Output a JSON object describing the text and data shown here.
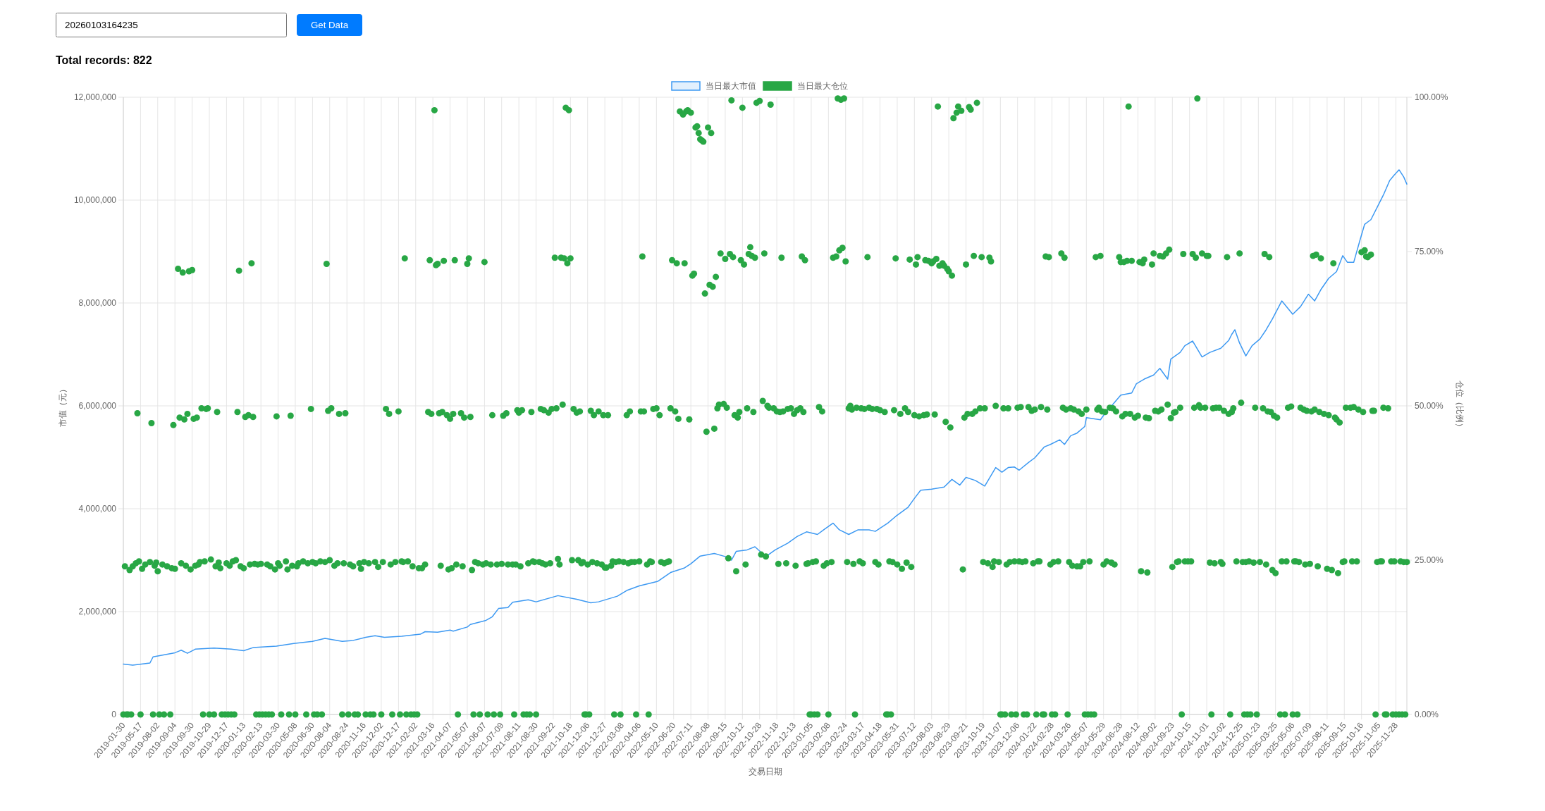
{
  "chart_data": {
    "type": "line",
    "title": "Total records: 822",
    "annotations": [
      "20260103164235",
      "Get Data"
    ],
    "xlabel": "交易日期",
    "ylabel": "市值（元）",
    "y2label": "仓位（比例）",
    "legend": "top",
    "grid": true,
    "categories": [
      "2019-01-30",
      null,
      null,
      null,
      null,
      null,
      null,
      null,
      null,
      null,
      null,
      "2019-05-17",
      null,
      null,
      null,
      null,
      null,
      null,
      null,
      null,
      null,
      null,
      "2019-08-02",
      null,
      null,
      null,
      null,
      null,
      null,
      null,
      null,
      null,
      null,
      "2019-09-04",
      null,
      null,
      null,
      null,
      null,
      null,
      null,
      null,
      null,
      null,
      "2019-09-30",
      null,
      null,
      null,
      null,
      null,
      null,
      null,
      null,
      null,
      null,
      "2019-10-29",
      null,
      null,
      null,
      null,
      null,
      null,
      null,
      null,
      null,
      null,
      "2019-12-17",
      null,
      null,
      null,
      null,
      null,
      null,
      null,
      null,
      null,
      null,
      "2020-01-13",
      null,
      null,
      null,
      null,
      null,
      null,
      null,
      null,
      null,
      null,
      "2020-02-13",
      null,
      null,
      null,
      null,
      null,
      null,
      null,
      null,
      null,
      null,
      "2020-03-30",
      null,
      null,
      null,
      null,
      null,
      null,
      null,
      null,
      null,
      null,
      "2020-05-08",
      null,
      null,
      null,
      null,
      null,
      null,
      null,
      null,
      null,
      null,
      "2020-06-30",
      null,
      null,
      null,
      null,
      null,
      null,
      null,
      null,
      null,
      null,
      "2020-08-04",
      null,
      null,
      null,
      null,
      null,
      null,
      null,
      null,
      null,
      null,
      "2020-08-24",
      null,
      null,
      null,
      null,
      null,
      null,
      null,
      null,
      null,
      null,
      "2020-11-16",
      null,
      null,
      null,
      null,
      null,
      null,
      null,
      null,
      null,
      null,
      "2020-12-02",
      null,
      null,
      null,
      null,
      null,
      null,
      null,
      null,
      null,
      null,
      "2020-12-17",
      null,
      null,
      null,
      null,
      null,
      null,
      null,
      null,
      null,
      null,
      "2021-02-02",
      null,
      null,
      null,
      null,
      null,
      null,
      null,
      null,
      null,
      null,
      "2021-03-16",
      null,
      null,
      null,
      null,
      null,
      null,
      null,
      null,
      null,
      null,
      "2021-04-07",
      null,
      null,
      null,
      null,
      null,
      null,
      null,
      null,
      null,
      null,
      "2021-05-07",
      null,
      null,
      null,
      null,
      null,
      null,
      null,
      null,
      null,
      null,
      "2021-06-07",
      null,
      null,
      null,
      null,
      null,
      null,
      null,
      null,
      null,
      null,
      "2021-07-09",
      null,
      null,
      null,
      null,
      null,
      null,
      null,
      null,
      null,
      null,
      "2021-08-11",
      null,
      null,
      null,
      null,
      null,
      null,
      null,
      null,
      null,
      null,
      "2021-08-30",
      null,
      null,
      null,
      null,
      null,
      null,
      null,
      null,
      null,
      null,
      "2021-09-22",
      null,
      null,
      null,
      null,
      null,
      null,
      null,
      null,
      null,
      null,
      "2021-10-18",
      null,
      null,
      null,
      null,
      null,
      null,
      null,
      null,
      null,
      null,
      "2021-12-06",
      null,
      null,
      null,
      null,
      null,
      null,
      null,
      null,
      null,
      null,
      "2021-12-27",
      null,
      null,
      null,
      null,
      null,
      null,
      null,
      null,
      null,
      null,
      "2022-03-08",
      null,
      null,
      null,
      null,
      null,
      null,
      null,
      null,
      null,
      null,
      "2022-04-06",
      null,
      null,
      null,
      null,
      null,
      null,
      null,
      null,
      null,
      null,
      "2022-05-10",
      null,
      null,
      null,
      null,
      null,
      null,
      null,
      null,
      null,
      null,
      "2022-06-20",
      null,
      null,
      null,
      null,
      null,
      null,
      null,
      null,
      null,
      null,
      "2022-07-11",
      null,
      null,
      null,
      null,
      null,
      null,
      null,
      null,
      null,
      null,
      "2022-08-08",
      null,
      null,
      null,
      null,
      null,
      null,
      null,
      null,
      null,
      null,
      "2022-09-15",
      null,
      null,
      null,
      null,
      null,
      null,
      null,
      null,
      null,
      null,
      "2022-10-12",
      null,
      null,
      null,
      null,
      null,
      null,
      null,
      null,
      null,
      null,
      "2022-10-28",
      null,
      null,
      null,
      null,
      null,
      null,
      null,
      null,
      null,
      null,
      "2022-11-18",
      null,
      null,
      null,
      null,
      null,
      null,
      null,
      null,
      null,
      null,
      "2022-12-13",
      null,
      null,
      null,
      null,
      null,
      null,
      null,
      null,
      null,
      null,
      "2023-01-05",
      null,
      null,
      null,
      null,
      null,
      null,
      null,
      null,
      null,
      null,
      "2023-02-08",
      null,
      null,
      null,
      null,
      null,
      null,
      null,
      null,
      null,
      null,
      "2023-02-24",
      null,
      null,
      null,
      null,
      null,
      null,
      null,
      null,
      null,
      null,
      "2023-03-17",
      null,
      null,
      null,
      null,
      null,
      null,
      null,
      null,
      null,
      null,
      "2023-04-18",
      null,
      null,
      null,
      null,
      null,
      null,
      null,
      null,
      null,
      null,
      "2023-05-31",
      null,
      null,
      null,
      null,
      null,
      null,
      null,
      null,
      null,
      null,
      "2023-07-12",
      null,
      null,
      null,
      null,
      null,
      null,
      null,
      null,
      null,
      null,
      "2023-08-03",
      null,
      null,
      null,
      null,
      null,
      null,
      null,
      null,
      null,
      null,
      "2023-08-29",
      null,
      null,
      null,
      null,
      null,
      null,
      null,
      null,
      null,
      null,
      "2023-09-21",
      null,
      null,
      null,
      null,
      null,
      null,
      null,
      null,
      null,
      null,
      "2023-10-19",
      null,
      null,
      null,
      null,
      null,
      null,
      null,
      null,
      null,
      null,
      "2023-11-07",
      null,
      null,
      null,
      null,
      null,
      null,
      null,
      null,
      null,
      null,
      "2023-12-06",
      null,
      null,
      null,
      null,
      null,
      null,
      null,
      null,
      null,
      null,
      "2024-01-22",
      null,
      null,
      null,
      null,
      null,
      null,
      null,
      null,
      null,
      null,
      "2024-02-28",
      null,
      null,
      null,
      null,
      null,
      null,
      null,
      null,
      null,
      null,
      "2024-03-26",
      null,
      null,
      null,
      null,
      null,
      null,
      null,
      null,
      null,
      null,
      "2024-05-07",
      null,
      null,
      null,
      null,
      null,
      null,
      null,
      null,
      null,
      null,
      "2024-05-29",
      null,
      null,
      null,
      null,
      null,
      null,
      null,
      null,
      null,
      null,
      "2024-06-28",
      null,
      null,
      null,
      null,
      null,
      null,
      null,
      null,
      null,
      null,
      "2024-08-12",
      null,
      null,
      null,
      null,
      null,
      null,
      null,
      null,
      null,
      null,
      "2024-09-02",
      null,
      null,
      null,
      null,
      null,
      null,
      null,
      null,
      null,
      null,
      "2024-09-23",
      null,
      null,
      null,
      null,
      null,
      null,
      null,
      null,
      null,
      null,
      "2024-10-15",
      null,
      null,
      null,
      null,
      null,
      null,
      null,
      null,
      null,
      null,
      "2024-11-01",
      null,
      null,
      null,
      null,
      null,
      null,
      null,
      null,
      null,
      null,
      "2024-12-02",
      null,
      null,
      null,
      null,
      null,
      null,
      null,
      null,
      null,
      null,
      "2024-12-25",
      null,
      null,
      null,
      null,
      null,
      null,
      null,
      null,
      null,
      null,
      "2025-01-23",
      null,
      null,
      null,
      null,
      null,
      null,
      null,
      null,
      null,
      null,
      "2025-03-25",
      null,
      null,
      null,
      null,
      null,
      null,
      null,
      null,
      null,
      null,
      "2025-05-06",
      null,
      null,
      null,
      null,
      null,
      null,
      null,
      null,
      null,
      null,
      "2025-07-09",
      null,
      null,
      null,
      null,
      null,
      null,
      null,
      null,
      null,
      null,
      "2025-08-11",
      null,
      null,
      null,
      null,
      null,
      null,
      null,
      null,
      null,
      null,
      "2025-09-15",
      null,
      null,
      null,
      null,
      null,
      null,
      null,
      null,
      null,
      null,
      "2025-10-16",
      null,
      null,
      null,
      null,
      null,
      null,
      null,
      null,
      null,
      null,
      "2025-11-05",
      null,
      null,
      null,
      null,
      null,
      null,
      null,
      null,
      null,
      null,
      "2025-11-28",
      null,
      null,
      null,
      null,
      null,
      null,
      null
    ],
    "ylim": [
      0,
      12000000
    ],
    "yticks": [
      0,
      {
        "value": 2000000,
        "label": "2,000,000"
      },
      {
        "value": 4000000,
        "label": "4,000,000"
      },
      {
        "value": 6000000,
        "label": "6,000,000"
      },
      {
        "value": 8000000,
        "label": "8,000,000"
      },
      {
        "value": 10000000,
        "label": "10,000,000"
      },
      {
        "value": 12000000,
        "label": "12,000,000"
      }
    ],
    "y2lim": [
      0,
      100
    ],
    "y2ticks": [
      {
        "value": 0,
        "label": "0.00%"
      },
      {
        "value": 25,
        "label": "25.00%"
      },
      {
        "value": 50,
        "label": "50.00%"
      },
      {
        "value": 75,
        "label": "75.00%"
      },
      {
        "value": 100,
        "label": "100.00%"
      }
    ],
    "series": [
      {
        "name": "当日最大市值",
        "color": "#3d99f2",
        "marker": "none",
        "line_style": "solid",
        "values": [
          980000,
          null,
          null,
          null,
          null,
          null,
          960000,
          null,
          null,
          null,
          null,
          null,
          null,
          null,
          null,
          null,
          null,
          1000000,
          null,
          1120000,
          null,
          null,
          null,
          null,
          null,
          null,
          null,
          null,
          null,
          null,
          null,
          null,
          null,
          1200000,
          null,
          null,
          null,
          1250000,
          null,
          null,
          null,
          1190000,
          null,
          null,
          null,
          null,
          1270000,
          null,
          null,
          null,
          null,
          null,
          null,
          null,
          null,
          null,
          null,
          null,
          1290000,
          null,
          null,
          null,
          null,
          null,
          null,
          null,
          null,
          null,
          null,
          1270000,
          null,
          null,
          null,
          null,
          null,
          null,
          null,
          1240000,
          null,
          null,
          null,
          null,
          null,
          1300000,
          null,
          null,
          null,
          null,
          null,
          null,
          null,
          null,
          null,
          null,
          null,
          null,
          null,
          null,
          1330000,
          null,
          null,
          null,
          null,
          null,
          null,
          null,
          null,
          null,
          null,
          1380000,
          null,
          null,
          null,
          null,
          null,
          null,
          null,
          null,
          null,
          null,
          null,
          1420000,
          null,
          null,
          null,
          null,
          null,
          null,
          null,
          1480000,
          null,
          null,
          null,
          null,
          null,
          null,
          null,
          null,
          null,
          null,
          1420000,
          null,
          null,
          null,
          null,
          null,
          null,
          1440000,
          null,
          null,
          null,
          null,
          null,
          null,
          null,
          1500000,
          null,
          null,
          null,
          null,
          null,
          1530000,
          null,
          null,
          null,
          null,
          null,
          1500000,
          null,
          null,
          null,
          null,
          null,
          null,
          null,
          null,
          null,
          null,
          1520000,
          null,
          null,
          null,
          null,
          null,
          null,
          null,
          null,
          null,
          null,
          null,
          1560000,
          null,
          null,
          1610000,
          null,
          null,
          null,
          null,
          null,
          null,
          null,
          1600000,
          null,
          null,
          null,
          null,
          null,
          null,
          null,
          1640000,
          null,
          1620000,
          null,
          null,
          null,
          null,
          null,
          null,
          null,
          null,
          1700000,
          null,
          1750000,
          null,
          null,
          null,
          null,
          null,
          null,
          null,
          null,
          null,
          1830000,
          null,
          null,
          null,
          1900000,
          null,
          null,
          null,
          2060000,
          null,
          null,
          null,
          null,
          null,
          2080000,
          null,
          null,
          2180000,
          null,
          null,
          null,
          null,
          null,
          null,
          null,
          null,
          null,
          2230000,
          null,
          null,
          null,
          null,
          2190000,
          null,
          null,
          null,
          null,
          null,
          null,
          null,
          null,
          null,
          null,
          null,
          null,
          null,
          2310000,
          null,
          null,
          null,
          null,
          null,
          null,
          null,
          null,
          null,
          null,
          null,
          2240000,
          null,
          null,
          null,
          null,
          null,
          null,
          null,
          null,
          2170000,
          null,
          null,
          null,
          null,
          2190000,
          null,
          null,
          null,
          null,
          null,
          null,
          null,
          null,
          null,
          null,
          null,
          2300000,
          null,
          null,
          null,
          null,
          null,
          2410000,
          null,
          null,
          null,
          null,
          null,
          null,
          null,
          2500000,
          null,
          null,
          null,
          null,
          null,
          null,
          null,
          null,
          null,
          null,
          null,
          2590000,
          null,
          null,
          null,
          null,
          null,
          null,
          null,
          2760000,
          null,
          null,
          null,
          null,
          null,
          null,
          null,
          null,
          2850000,
          null,
          null,
          null,
          2930000,
          null,
          null,
          null,
          null,
          null,
          3080000,
          null,
          null,
          null,
          null,
          null,
          null,
          null,
          null,
          3130000,
          null,
          null,
          null,
          null,
          null,
          null,
          3070000,
          null,
          null,
          null,
          3000000,
          null,
          null,
          3170000,
          null,
          null,
          null,
          null,
          null,
          null,
          3200000,
          null,
          null,
          null,
          null,
          3260000,
          null,
          null,
          null,
          3150000,
          null,
          null,
          3070000,
          null,
          null,
          null,
          null,
          null,
          3200000,
          null,
          null,
          null,
          null,
          null,
          null,
          null,
          3330000,
          null,
          null,
          null,
          null,
          null,
          3460000,
          null,
          null,
          null,
          null,
          null,
          3550000,
          null,
          null,
          null,
          null,
          null,
          null,
          3500000,
          null,
          null,
          null,
          3590000,
          null,
          null,
          null,
          null,
          null,
          3720000,
          null,
          null,
          null,
          3590000,
          null,
          null,
          null,
          null,
          null,
          3500000,
          null,
          null,
          null,
          null,
          null,
          3590000,
          null,
          null,
          null,
          null,
          null,
          null,
          3590000,
          null,
          null,
          null,
          3560000,
          null,
          null,
          null,
          null,
          null,
          null,
          null,
          3720000,
          null,
          null,
          null,
          null,
          3850000,
          null,
          null,
          null,
          null,
          null,
          null,
          null,
          4030000,
          null,
          null,
          null,
          4200000,
          null,
          null,
          null,
          4360000,
          null,
          null,
          null,
          null,
          null,
          null,
          4380000,
          null,
          null,
          null,
          null,
          null,
          null,
          null,
          4420000,
          null,
          null,
          null,
          null,
          4570000,
          null,
          null,
          null,
          null,
          4460000,
          null,
          null,
          null,
          4610000,
          null,
          null,
          null,
          null,
          null,
          4550000,
          null,
          null,
          null,
          null,
          null,
          4440000,
          null,
          null,
          null,
          null,
          null,
          null,
          4800000,
          null,
          null,
          null,
          4710000,
          null,
          null,
          null,
          4800000,
          null,
          null,
          null,
          4810000,
          null,
          null,
          4750000,
          null,
          null,
          null,
          null,
          null,
          4900000,
          null,
          null,
          null,
          4990000,
          null,
          null,
          null,
          null,
          null,
          5200000,
          null,
          null,
          null,
          5250000,
          null,
          null,
          null,
          null,
          null,
          5340000,
          null,
          null,
          5250000,
          null,
          null,
          null,
          5420000,
          null,
          null,
          null,
          5470000,
          null,
          null,
          null,
          null,
          5600000,
          5770000,
          null,
          null,
          null,
          null,
          null,
          null,
          null,
          null,
          5730000,
          null,
          null,
          null,
          5900000,
          null,
          null,
          null,
          6030000,
          null,
          null,
          null,
          null,
          6210000,
          null,
          null,
          null,
          null,
          null,
          null,
          6250000,
          null,
          null,
          6430000,
          null,
          null,
          null,
          null,
          6520000,
          null,
          null,
          null,
          null,
          null,
          6600000,
          null,
          null,
          null,
          6730000,
          null,
          null,
          null,
          null,
          6520000,
          null,
          6910000,
          null,
          null,
          null,
          null,
          null,
          7040000,
          null,
          null,
          7170000,
          null,
          null,
          null,
          null,
          7260000,
          null,
          null,
          null,
          null,
          null,
          6950000,
          null,
          null,
          null,
          null,
          7040000,
          null,
          null,
          null,
          null,
          null,
          null,
          7120000,
          null,
          null,
          null,
          null,
          7270000,
          null,
          7390000,
          null,
          7480000,
          null,
          null,
          7220000,
          null,
          null,
          null,
          6970000,
          null,
          null,
          null,
          7170000,
          null,
          null,
          null,
          null,
          7300000,
          null,
          null,
          null,
          7480000,
          null,
          null,
          null,
          7690000,
          null,
          null,
          null,
          null,
          null,
          8040000,
          null,
          null,
          null,
          null,
          null,
          null,
          7780000,
          null,
          null,
          null,
          null,
          7930000,
          null,
          null,
          null,
          null,
          8170000,
          null,
          null,
          null,
          8040000,
          null,
          null,
          null,
          8260000,
          null,
          null,
          null,
          null,
          8480000,
          null,
          null,
          null,
          null,
          8610000,
          null,
          null,
          null,
          8920000,
          null,
          null,
          8790000,
          null,
          null,
          null,
          8790000,
          null,
          null,
          null,
          9220000,
          null,
          null,
          9530000,
          null,
          null,
          null,
          9620000,
          null,
          null,
          null,
          null,
          9920000,
          null,
          null,
          10100000,
          null,
          null,
          null,
          10380000,
          null,
          null,
          10490000,
          null,
          null,
          10590000,
          null,
          null,
          10450000,
          null,
          10310000
        ]
      },
      {
        "name": "当日最大仓位",
        "type": "scatter",
        "axis": "y2",
        "color": "#28a745",
        "marker": "circle",
        "values": [
          0,
          24.0,
          0,
          0,
          23.4,
          0,
          24.0,
          null,
          24.5,
          48.8,
          24.8,
          0,
          23.6,
          null,
          24.3,
          null,
          null,
          24.7,
          47.2,
          0,
          24.1,
          24.6,
          23.2,
          0,
          null,
          24.3,
          0,
          null,
          24.0,
          null,
          0,
          23.7,
          46.9,
          23.6,
          null,
          72.2,
          48.1,
          24.5,
          71.6,
          47.8,
          24.1,
          48.7,
          71.8,
          23.5,
          72.0,
          47.9,
          24.1,
          48.1,
          24.3,
          24.7,
          49.6,
          0,
          24.8,
          49.5,
          49.6,
          0,
          25.1,
          null,
          0,
          24.0,
          49.0,
          24.6,
          23.7,
          0,
          null,
          0,
          24.5,
          0,
          24.1,
          0,
          24.8,
          0,
          25.0,
          49.0,
          71.9,
          24.0,
          null,
          23.7,
          48.2,
          null,
          48.5,
          24.3,
          73.1,
          48.2,
          24.4,
          0,
          24.3,
          0,
          24.4,
          0,
          null,
          0,
          24.3,
          0,
          24.0,
          0,
          null,
          23.5,
          48.3,
          24.5,
          24.1,
          0,
          null,
          null,
          24.8,
          23.5,
          0,
          48.4,
          24.1,
          null,
          0,
          24.0,
          24.5,
          null,
          null,
          24.8,
          null,
          0,
          24.5,
          null,
          49.5,
          24.7,
          0,
          24.5,
          0,
          null,
          24.8,
          0,
          null,
          24.7,
          73.0,
          49.2,
          25.0,
          49.6,
          null,
          24.1,
          null,
          24.5,
          48.7,
          null,
          0,
          24.5,
          48.8,
          null,
          0,
          24.3,
          null,
          24.0,
          0,
          null,
          0,
          24.5,
          23.6,
          null,
          24.7,
          0,
          null,
          24.5,
          0,
          null,
          0,
          24.7,
          null,
          23.9,
          null,
          0,
          24.7,
          null,
          49.5,
          null,
          48.7,
          24.3,
          0,
          null,
          24.7,
          null,
          49.1,
          0,
          24.8,
          24.7,
          73.9,
          0,
          24.8,
          null,
          0,
          24.0,
          0,
          null,
          0,
          23.7,
          null,
          23.7,
          null,
          24.3,
          null,
          49.0,
          73.6,
          48.7,
          null,
          97.9,
          72.8,
          73.0,
          48.8,
          24.1,
          49.0,
          73.5,
          null,
          48.5,
          23.5,
          47.9,
          23.7,
          48.7,
          73.6,
          24.3,
          0,
          null,
          48.8,
          24.0,
          48.1,
          null,
          73.0,
          73.9,
          48.2,
          23.4,
          0,
          24.7,
          null,
          24.5,
          0,
          null,
          24.3,
          73.3,
          24.5,
          0,
          null,
          24.3,
          48.5,
          0,
          null,
          24.3,
          null,
          0,
          24.4,
          48.4,
          null,
          48.8,
          24.3,
          null,
          null,
          24.3,
          0,
          24.3,
          49.3,
          48.9,
          24.0,
          49.3,
          0,
          null,
          0,
          24.5,
          0,
          49.0,
          24.8,
          24.7,
          0,
          null,
          24.7,
          49.5,
          24.5,
          49.3,
          24.3,
          null,
          48.9,
          24.5,
          49.5,
          null,
          74.0,
          49.6,
          25.2,
          24.3,
          74.0,
          50.2,
          73.9,
          98.3,
          73.1,
          97.9,
          73.9,
          25.0,
          49.5,
          null,
          48.9,
          25.0,
          49.1,
          24.5,
          24.7,
          0,
          0,
          24.3,
          0,
          49.2,
          24.7,
          48.5,
          null,
          24.5,
          49.1,
          null,
          24.3,
          48.5,
          23.8,
          23.8,
          48.5,
          null,
          24.1,
          24.8,
          0,
          24.7,
          null,
          24.8,
          0,
          null,
          24.7,
          null,
          48.5,
          24.5,
          49.1,
          24.7,
          null,
          24.7,
          0,
          null,
          24.8,
          49.1,
          74.2,
          49.1,
          null,
          24.3,
          0,
          24.8,
          24.7,
          49.5,
          null,
          49.6,
          null,
          48.5,
          24.7,
          null,
          24.5,
          null,
          24.7,
          24.8,
          49.6,
          73.6,
          null,
          49.1,
          73.1,
          47.9,
          97.7,
          null,
          97.2,
          73.1,
          97.7,
          97.9,
          47.8,
          97.5,
          71.1,
          71.4,
          95.1,
          95.3,
          94.2,
          93.2,
          93.0,
          92.8,
          68.2,
          45.8,
          95.1,
          69.6,
          94.2,
          69.3,
          46.3,
          70.9,
          49.6,
          50.2,
          74.7,
          null,
          50.3,
          73.8,
          49.7,
          25.3,
          74.6,
          99.5,
          74.1,
          48.5,
          23.2,
          48.1,
          49.0,
          73.6,
          98.3,
          72.9,
          24.3,
          49.6,
          74.6,
          75.7,
          74.3,
          49.0,
          74.0,
          99.1,
          null,
          99.4,
          25.9,
          50.8,
          74.7,
          25.6,
          50.0,
          49.7,
          98.8,
          null,
          49.6,
          null,
          49.1,
          24.4,
          49.0,
          74.0,
          49.1,
          null,
          24.5,
          49.5,
          null,
          49.6,
          null,
          48.7,
          24.1,
          49.3,
          null,
          49.6,
          74.2,
          49.0,
          73.6,
          24.4,
          24.5,
          0,
          0,
          24.7,
          0,
          24.8,
          0,
          49.8,
          null,
          49.1,
          24.1,
          null,
          24.5,
          0,
          null,
          24.7,
          74.0,
          null,
          74.2,
          99.8,
          75.2,
          99.6,
          75.6,
          99.8,
          73.4,
          24.7,
          49.6,
          50.0,
          49.4,
          24.4,
          0,
          49.7,
          null,
          24.8,
          49.6,
          24.5,
          49.5,
          null,
          74.1,
          49.7,
          null,
          49.5,
          null,
          24.7,
          49.5,
          24.3,
          49.3,
          null,
          null,
          49.0,
          0,
          0,
          24.8,
          0,
          24.7,
          49.3,
          73.9,
          24.3,
          null,
          48.7,
          23.6,
          null,
          49.6,
          24.6,
          49.0,
          73.7,
          23.9,
          null,
          48.5,
          72.9,
          74.1,
          48.3,
          null,
          null,
          48.5,
          73.6,
          48.6,
          73.5,
          null,
          73.1,
          73.4,
          48.6,
          73.8,
          98.5,
          72.7,
          null,
          73.1,
          72.7,
          47.4,
          72.2,
          71.8,
          46.5,
          71.1,
          96.6,
          null,
          97.5,
          98.5,
          null,
          97.8,
          23.5,
          48.1,
          72.9,
          48.7,
          98.4,
          98.0,
          48.7,
          74.3,
          49.1,
          99.1,
          null,
          49.6,
          74.1,
          24.7,
          49.6,
          null,
          24.5,
          74.0,
          73.4,
          23.9,
          24.8,
          50.0,
          null,
          24.7,
          0,
          0,
          49.6,
          0,
          24.3,
          49.6,
          24.7,
          0,
          null,
          24.8,
          0,
          49.7,
          24.8,
          49.8,
          24.7,
          0,
          24.8,
          0,
          49.8,
          null,
          49.2,
          24.5,
          49.4,
          0,
          24.8,
          24.8,
          49.8,
          0,
          0,
          74.2,
          49.4,
          74.1,
          24.3,
          0,
          24.7,
          0,
          null,
          24.8,
          null,
          74.7,
          49.7,
          74.0,
          49.4,
          0,
          24.7,
          49.6,
          24.1,
          49.4,
          null,
          24.0,
          49.1,
          24.0,
          48.7,
          24.7,
          0,
          49.4,
          0,
          24.8,
          0,
          null,
          0,
          74.1,
          49.4,
          49.7,
          74.3,
          49.1,
          24.3,
          49.0,
          24.8,
          null,
          49.7,
          24.6,
          49.6,
          24.3,
          49.1,
          null,
          74.1,
          73.3,
          48.3,
          73.3,
          48.7,
          73.5,
          98.5,
          48.7,
          73.5,
          null,
          48.1,
          null,
          48.4,
          73.3,
          23.2,
          73.1,
          73.7,
          48.1,
          23.0,
          48.0,
          null,
          72.9,
          74.7,
          49.2,
          null,
          49.1,
          74.3,
          49.4,
          74.2,
          null,
          74.7,
          50.2,
          75.3,
          48.0,
          23.9,
          48.9,
          49.0,
          24.7,
          24.8,
          49.7,
          0,
          74.6,
          24.8,
          null,
          24.8,
          null,
          24.8,
          74.6,
          49.7,
          74.0,
          99.8,
          50.1,
          49.7,
          74.7,
          null,
          49.7,
          74.3,
          74.3,
          24.6,
          0,
          49.6,
          24.5,
          49.7,
          null,
          49.7,
          24.7,
          24.4,
          49.2,
          null,
          74.1,
          48.7,
          0,
          49.0,
          49.6,
          null,
          24.8,
          null,
          74.7,
          50.5,
          24.7,
          0,
          24.7,
          0,
          24.8,
          0,
          null,
          24.6,
          49.7,
          0,
          null,
          24.7,
          null,
          49.6,
          74.6,
          24.3,
          49.1,
          74.1,
          49.0,
          23.4,
          48.4,
          22.9,
          48.1,
          null,
          0,
          24.8,
          null,
          0,
          24.8,
          49.7,
          null,
          49.9,
          0,
          24.8,
          24.8,
          0,
          24.7,
          49.7,
          null,
          49.4,
          24.3,
          49.2,
          null,
          24.4,
          49.1,
          74.3,
          49.4,
          74.5,
          24.0,
          49.0,
          73.9,
          null,
          48.7,
          null,
          23.6,
          48.5,
          null,
          23.4,
          73.1,
          48.1,
          47.8,
          22.9,
          47.3,
          null,
          24.7,
          24.8,
          49.7,
          null,
          null,
          49.7,
          24.8,
          49.8,
          null,
          24.8,
          49.4,
          null,
          74.9,
          49.0,
          75.2,
          74.2,
          74.1,
          null,
          74.5,
          49.2,
          49.2,
          0,
          24.7,
          null,
          24.8,
          24.8,
          49.7,
          0,
          0,
          49.6,
          null,
          24.8,
          0,
          24.8,
          0,
          null,
          0,
          24.8,
          0,
          24.7,
          0,
          24.7
        ]
      }
    ]
  }
}
